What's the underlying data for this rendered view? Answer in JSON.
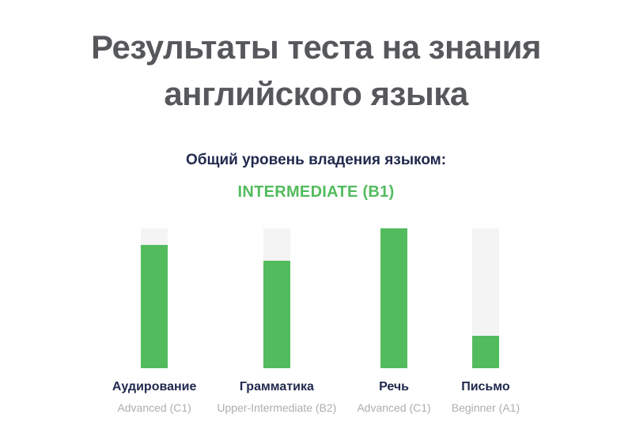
{
  "header": {
    "title_line1": "Результаты теста на знания",
    "title_line2": "английского языка"
  },
  "overall": {
    "label": "Общий уровень владения языком:",
    "level": "INTERMEDIATE (B1)"
  },
  "chart_data": {
    "type": "bar",
    "orientation": "vertical",
    "title": "",
    "categories": [
      "Аудирование",
      "Грамматика",
      "Речь",
      "Письмо"
    ],
    "values": [
      88,
      77,
      100,
      23
    ],
    "value_labels": [
      "Advanced (C1)",
      "Upper-Intermediate (B2)",
      "Advanced (C1)",
      "Beginner (A1)"
    ],
    "ylim": [
      0,
      100
    ],
    "grid": false,
    "legend": "none",
    "bar_color": "#52bb5e",
    "track_color": "#f4f4f4"
  },
  "colors": {
    "accent_green": "#52bb5e",
    "track_gray": "#f4f4f4",
    "navy_text": "#212a4e",
    "title_gray": "#56585c",
    "sublabel_gray": "#abaeb3",
    "background": "#ffffff"
  }
}
